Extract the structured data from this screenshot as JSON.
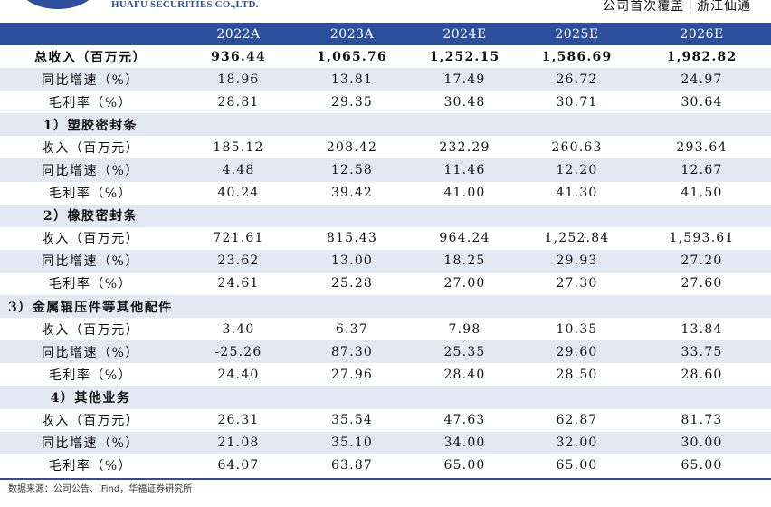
{
  "header": {
    "company": "HUAFU SECURITIES CO.,LTD.",
    "report_type": "公司首次覆盖",
    "separator": "|",
    "company_name": "浙江仙通",
    "brand_color": "#2d4e9c"
  },
  "table": {
    "columns": [
      "",
      "2022A",
      "2023A",
      "2024E",
      "2025E",
      "2026E"
    ],
    "rows": [
      {
        "label": "总收入（百万元）",
        "values": [
          "936.44",
          "1,065.76",
          "1,252.15",
          "1,586.69",
          "1,982.82"
        ]
      },
      {
        "label": "同比增速（%）",
        "values": [
          "18.96",
          "13.81",
          "17.49",
          "26.72",
          "24.97"
        ]
      },
      {
        "label": "毛利率（%）",
        "values": [
          "28.81",
          "29.35",
          "30.48",
          "30.71",
          "30.64"
        ]
      },
      {
        "label": "1）塑胶密封条",
        "values": [
          "",
          "",
          "",
          "",
          ""
        ]
      },
      {
        "label": "收入（百万元）",
        "values": [
          "185.12",
          "208.42",
          "232.29",
          "260.63",
          "293.64"
        ]
      },
      {
        "label": "同比增速（%）",
        "values": [
          "4.48",
          "12.58",
          "11.46",
          "12.20",
          "12.67"
        ]
      },
      {
        "label": "毛利率（%）",
        "values": [
          "40.24",
          "39.42",
          "41.00",
          "41.30",
          "41.50"
        ]
      },
      {
        "label": "2）橡胶密封条",
        "values": [
          "",
          "",
          "",
          "",
          ""
        ]
      },
      {
        "label": "收入（百万元）",
        "values": [
          "721.61",
          "815.43",
          "964.24",
          "1,252.84",
          "1,593.61"
        ]
      },
      {
        "label": "同比增速（%）",
        "values": [
          "23.62",
          "13.00",
          "18.25",
          "29.93",
          "27.20"
        ]
      },
      {
        "label": "毛利率（%）",
        "values": [
          "24.61",
          "25.28",
          "27.00",
          "27.30",
          "27.60"
        ]
      },
      {
        "label": "3）金属辊压件等其他配件",
        "values": [
          "",
          "",
          "",
          "",
          ""
        ]
      },
      {
        "label": "收入（百万元）",
        "values": [
          "3.40",
          "6.37",
          "7.98",
          "10.35",
          "13.84"
        ]
      },
      {
        "label": "同比增速（%）",
        "values": [
          "-25.26",
          "87.30",
          "25.35",
          "29.60",
          "33.75"
        ]
      },
      {
        "label": "毛利率（%）",
        "values": [
          "24.40",
          "27.96",
          "28.40",
          "28.50",
          "28.60"
        ]
      },
      {
        "label": "4）其他业务",
        "values": [
          "",
          "",
          "",
          "",
          ""
        ]
      },
      {
        "label": "收入（百万元）",
        "values": [
          "26.31",
          "35.54",
          "47.63",
          "62.87",
          "81.73"
        ]
      },
      {
        "label": "同比增速（%）",
        "values": [
          "21.08",
          "35.10",
          "34.00",
          "32.00",
          "30.00"
        ]
      },
      {
        "label": "毛利率（%）",
        "values": [
          "64.07",
          "63.87",
          "65.00",
          "65.00",
          "65.00"
        ]
      }
    ]
  },
  "footer": {
    "source": "数据来源：公司公告、iFind，华福证券研究所"
  }
}
